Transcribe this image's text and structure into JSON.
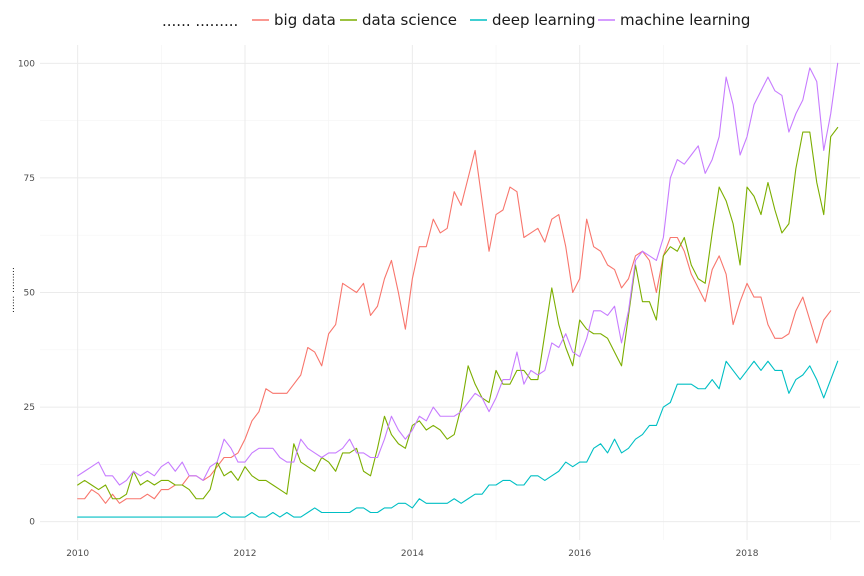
{
  "chart_data": {
    "type": "line",
    "title": "",
    "xlabel": "",
    "ylabel": "...... .........",
    "legend_title": "...... .........",
    "legend_position": "top",
    "grid": true,
    "xlim": [
      2009.55,
      2019.35
    ],
    "ylim": [
      -4,
      104
    ],
    "xticks": [
      2010,
      2012,
      2014,
      2016,
      2018
    ],
    "yticks": [
      0,
      25,
      50,
      75,
      100
    ],
    "x_start": 2010.0,
    "x_step_months": 1,
    "series": [
      {
        "name": "big data",
        "color": "#F8766D",
        "values": [
          5,
          5,
          7,
          6,
          4,
          6,
          4,
          5,
          5,
          5,
          6,
          5,
          7,
          7,
          8,
          8,
          10,
          10,
          9,
          10,
          12,
          14,
          14,
          15,
          18,
          22,
          24,
          29,
          28,
          28,
          28,
          30,
          32,
          38,
          37,
          34,
          41,
          43,
          52,
          51,
          50,
          52,
          45,
          47,
          53,
          57,
          50,
          42,
          53,
          60,
          60,
          66,
          63,
          64,
          72,
          69,
          75,
          81,
          70,
          59,
          67,
          68,
          73,
          72,
          62,
          63,
          64,
          61,
          66,
          67,
          60,
          50,
          53,
          66,
          60,
          59,
          56,
          55,
          51,
          53,
          58,
          59,
          57,
          50,
          58,
          62,
          62,
          59,
          54,
          51,
          48,
          55,
          58,
          54,
          43,
          48,
          52,
          49,
          49,
          43,
          40,
          40,
          41,
          46,
          49,
          44,
          39,
          44,
          46
        ]
      },
      {
        "name": "data science",
        "color": "#7CAE00",
        "values": [
          8,
          9,
          8,
          7,
          8,
          5,
          5,
          6,
          11,
          8,
          9,
          8,
          9,
          9,
          8,
          8,
          7,
          5,
          5,
          7,
          13,
          10,
          11,
          9,
          12,
          10,
          9,
          9,
          8,
          7,
          6,
          17,
          13,
          12,
          11,
          14,
          13,
          11,
          15,
          15,
          16,
          11,
          10,
          16,
          23,
          19,
          17,
          16,
          21,
          22,
          20,
          21,
          20,
          18,
          19,
          25,
          34,
          30,
          27,
          26,
          33,
          30,
          30,
          33,
          33,
          31,
          31,
          41,
          51,
          43,
          38,
          34,
          44,
          42,
          41,
          41,
          40,
          37,
          34,
          45,
          56,
          48,
          48,
          44,
          58,
          60,
          59,
          62,
          56,
          53,
          52,
          63,
          73,
          70,
          65,
          56,
          73,
          71,
          67,
          74,
          68,
          63,
          65,
          77,
          85,
          85,
          74,
          67,
          84,
          86
        ]
      },
      {
        "name": "deep learning",
        "color": "#00BFC4",
        "values": [
          1,
          1,
          1,
          1,
          1,
          1,
          1,
          1,
          1,
          1,
          1,
          1,
          1,
          1,
          1,
          1,
          1,
          1,
          1,
          1,
          1,
          2,
          1,
          1,
          1,
          2,
          1,
          1,
          2,
          1,
          2,
          1,
          1,
          2,
          3,
          2,
          2,
          2,
          2,
          2,
          3,
          3,
          2,
          2,
          3,
          3,
          4,
          4,
          3,
          5,
          4,
          4,
          4,
          4,
          5,
          4,
          5,
          6,
          6,
          8,
          8,
          9,
          9,
          8,
          8,
          10,
          10,
          9,
          10,
          11,
          13,
          12,
          13,
          13,
          16,
          17,
          15,
          18,
          15,
          16,
          18,
          19,
          21,
          21,
          25,
          26,
          30,
          30,
          30,
          29,
          29,
          31,
          29,
          35,
          33,
          31,
          33,
          35,
          33,
          35,
          33,
          33,
          28,
          31,
          32,
          34,
          31,
          27,
          31,
          35
        ]
      },
      {
        "name": "machine learning",
        "color": "#C77CFF",
        "values": [
          10,
          11,
          12,
          13,
          10,
          10,
          8,
          9,
          11,
          10,
          11,
          10,
          12,
          13,
          11,
          13,
          10,
          10,
          9,
          12,
          13,
          18,
          16,
          13,
          13,
          15,
          16,
          16,
          16,
          14,
          13,
          13,
          18,
          16,
          15,
          14,
          15,
          15,
          16,
          18,
          15,
          15,
          14,
          14,
          18,
          23,
          20,
          18,
          20,
          23,
          22,
          25,
          23,
          23,
          23,
          24,
          26,
          28,
          27,
          24,
          27,
          31,
          31,
          37,
          30,
          33,
          32,
          33,
          39,
          38,
          41,
          37,
          36,
          40,
          46,
          46,
          45,
          47,
          39,
          46,
          57,
          59,
          58,
          57,
          62,
          75,
          79,
          78,
          80,
          82,
          76,
          79,
          84,
          97,
          91,
          80,
          84,
          91,
          94,
          97,
          94,
          93,
          85,
          89,
          92,
          99,
          96,
          81,
          89,
          100
        ]
      }
    ]
  }
}
